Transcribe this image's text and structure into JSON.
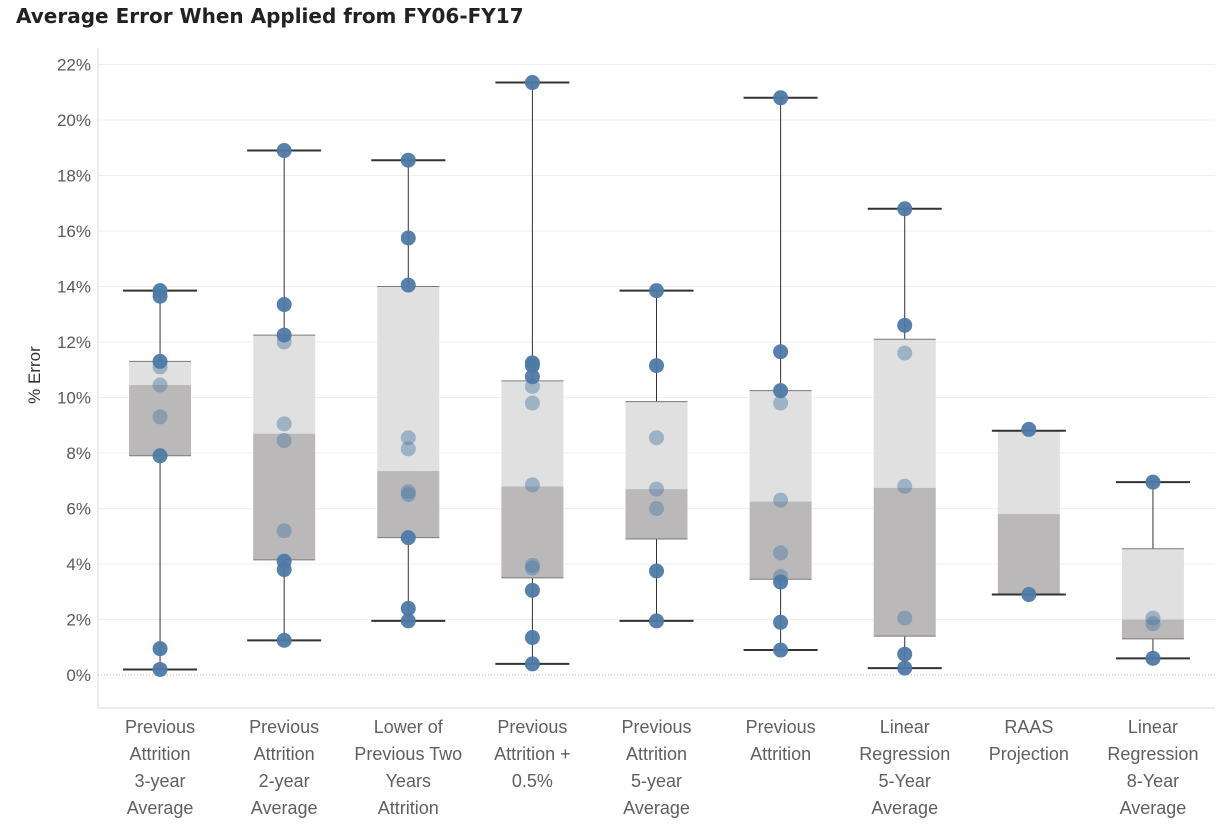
{
  "chart_data": {
    "type": "boxplot",
    "title": "Average Error When Applied from FY06-FY17",
    "ylabel": "% Error",
    "xlabel": "",
    "ylim": [
      0,
      22
    ],
    "yticks": [
      "0%",
      "2%",
      "4%",
      "6%",
      "8%",
      "10%",
      "12%",
      "14%",
      "16%",
      "18%",
      "20%",
      "22%"
    ],
    "grid": true,
    "colors": {
      "point": "#4e79a7",
      "box_lower": "#bab8b8",
      "box_upper": "#e0e0e0",
      "whisker": "#333333"
    },
    "categories": [
      {
        "label": "Previous Attrition 3-year Average",
        "label_lines": [
          "Previous",
          "Attrition",
          "3-year",
          "Average"
        ],
        "min": 0.2,
        "q1": 7.9,
        "median": 10.45,
        "q3": 11.3,
        "max": 13.85,
        "points": [
          13.85,
          13.65,
          11.3,
          11.1,
          10.45,
          9.3,
          7.9,
          0.95,
          0.2
        ]
      },
      {
        "label": "Previous Attrition 2-year Average",
        "label_lines": [
          "Previous",
          "Attrition",
          "2-year",
          "Average"
        ],
        "min": 1.25,
        "q1": 4.15,
        "median": 8.7,
        "q3": 12.25,
        "max": 18.9,
        "points": [
          18.9,
          13.35,
          12.25,
          12.0,
          9.05,
          8.45,
          5.2,
          4.1,
          3.8,
          1.25
        ]
      },
      {
        "label": "Lower of Previous Two Years Attrition",
        "label_lines": [
          "Lower of",
          "Previous Two",
          "Years",
          "Attrition"
        ],
        "min": 1.95,
        "q1": 4.95,
        "median": 7.35,
        "q3": 14.0,
        "max": 18.55,
        "points": [
          18.55,
          15.75,
          14.05,
          8.55,
          8.15,
          6.6,
          6.5,
          4.95,
          2.4,
          1.95
        ]
      },
      {
        "label": "Previous Attrition + 0.5%",
        "label_lines": [
          "Previous",
          "Attrition +",
          "0.5%"
        ],
        "min": 0.4,
        "q1": 3.5,
        "median": 6.8,
        "q3": 10.6,
        "max": 21.35,
        "points": [
          21.35,
          11.25,
          11.15,
          10.75,
          10.4,
          9.8,
          6.85,
          3.95,
          3.85,
          3.05,
          1.35,
          0.4
        ]
      },
      {
        "label": "Previous Attrition 5-year Average",
        "label_lines": [
          "Previous",
          "Attrition",
          "5-year",
          "Average"
        ],
        "min": 1.95,
        "q1": 4.9,
        "median": 6.7,
        "q3": 9.85,
        "max": 13.85,
        "points": [
          13.85,
          11.15,
          8.55,
          6.7,
          6.0,
          3.75,
          1.95
        ]
      },
      {
        "label": "Previous Attrition",
        "label_lines": [
          "Previous",
          "Attrition"
        ],
        "min": 0.9,
        "q1": 3.45,
        "median": 6.25,
        "q3": 10.25,
        "max": 20.8,
        "points": [
          20.8,
          11.65,
          10.25,
          9.8,
          6.3,
          4.4,
          3.55,
          3.35,
          1.9,
          0.9
        ]
      },
      {
        "label": "Linear Regression 5-Year Average",
        "label_lines": [
          "Linear",
          "Regression",
          "5-Year",
          "Average"
        ],
        "min": 0.25,
        "q1": 1.4,
        "median": 6.75,
        "q3": 12.1,
        "max": 16.8,
        "points": [
          16.8,
          12.6,
          11.6,
          6.8,
          2.05,
          0.75,
          0.25
        ]
      },
      {
        "label": "RAAS Projection",
        "label_lines": [
          "RAAS",
          "Projection"
        ],
        "min": 2.9,
        "q1": 2.9,
        "median": 5.8,
        "q3": 8.8,
        "max": 8.8,
        "points": [
          8.85,
          2.9
        ]
      },
      {
        "label": "Linear Regression 8-Year Average",
        "label_lines": [
          "Linear",
          "Regression",
          "8-Year",
          "Average"
        ],
        "min": 0.6,
        "q1": 1.3,
        "median": 2.0,
        "q3": 4.55,
        "max": 6.95,
        "points": [
          6.95,
          2.05,
          1.85,
          0.6
        ]
      }
    ]
  }
}
